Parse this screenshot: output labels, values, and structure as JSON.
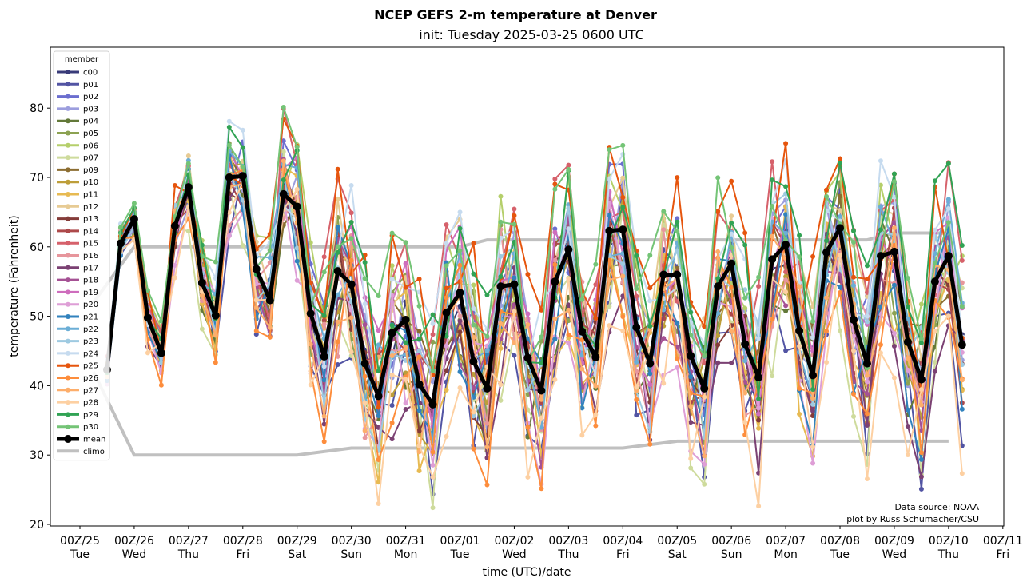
{
  "chart_data": {
    "type": "line",
    "title": "NCEP GEFS 2-m temperature at Denver",
    "subtitle": "init: Tuesday 2025-03-25 0600 UTC",
    "xlabel": "time (UTC)/date",
    "ylabel": "temperature (Fahrenheit)",
    "ylim": [
      20,
      89
    ],
    "yticks": [
      20,
      30,
      40,
      50,
      60,
      70,
      80
    ],
    "xlim_days": [
      -0.55,
      17.0
    ],
    "xticks": [
      {
        "line1": "00Z/25",
        "line2": "Tue"
      },
      {
        "line1": "00Z/26",
        "line2": "Wed"
      },
      {
        "line1": "00Z/27",
        "line2": "Thu"
      },
      {
        "line1": "00Z/28",
        "line2": "Fri"
      },
      {
        "line1": "00Z/29",
        "line2": "Sat"
      },
      {
        "line1": "00Z/30",
        "line2": "Sun"
      },
      {
        "line1": "00Z/31",
        "line2": "Mon"
      },
      {
        "line1": "00Z/01",
        "line2": "Tue"
      },
      {
        "line1": "00Z/02",
        "line2": "Wed"
      },
      {
        "line1": "00Z/03",
        "line2": "Thu"
      },
      {
        "line1": "00Z/04",
        "line2": "Fri"
      },
      {
        "line1": "00Z/05",
        "line2": "Sat"
      },
      {
        "line1": "00Z/06",
        "line2": "Sun"
      },
      {
        "line1": "00Z/07",
        "line2": "Mon"
      },
      {
        "line1": "00Z/08",
        "line2": "Tue"
      },
      {
        "line1": "00Z/09",
        "line2": "Wed"
      },
      {
        "line1": "00Z/10",
        "line2": "Thu"
      },
      {
        "line1": "00Z/11",
        "line2": "Fri"
      }
    ],
    "time_start_days": 0.5,
    "time_step_days": 0.25,
    "legend_title": "member",
    "legend_position": "top-left",
    "members": [
      {
        "name": "c00",
        "color": "#393b79",
        "offset": -0.5,
        "spread": 0.6
      },
      {
        "name": "p01",
        "color": "#5254a3",
        "offset": -3.0,
        "spread": 1.6
      },
      {
        "name": "p02",
        "color": "#6b6ecf",
        "offset": 1.0,
        "spread": 1.2
      },
      {
        "name": "p03",
        "color": "#9c9ede",
        "offset": 0.5,
        "spread": 1.1
      },
      {
        "name": "p04",
        "color": "#637939",
        "offset": -2.0,
        "spread": 1.3
      },
      {
        "name": "p05",
        "color": "#8ca252",
        "offset": 0.0,
        "spread": 1.4
      },
      {
        "name": "p06",
        "color": "#b5cf6b",
        "offset": 2.5,
        "spread": 1.3
      },
      {
        "name": "p07",
        "color": "#cedb9c",
        "offset": -2.5,
        "spread": 1.8
      },
      {
        "name": "p09",
        "color": "#8c6d31",
        "offset": 0.5,
        "spread": 1.0
      },
      {
        "name": "p10",
        "color": "#bd9e39",
        "offset": -1.0,
        "spread": 1.1
      },
      {
        "name": "p11",
        "color": "#e7ba52",
        "offset": -1.5,
        "spread": 1.5
      },
      {
        "name": "p12",
        "color": "#e7cb94",
        "offset": 2.0,
        "spread": 1.2
      },
      {
        "name": "p13",
        "color": "#843c39",
        "offset": -1.0,
        "spread": 1.0
      },
      {
        "name": "p14",
        "color": "#ad494a",
        "offset": -0.5,
        "spread": 1.1
      },
      {
        "name": "p15",
        "color": "#d6616b",
        "offset": 3.5,
        "spread": 1.5
      },
      {
        "name": "p16",
        "color": "#e7969c",
        "offset": -1.0,
        "spread": 1.6
      },
      {
        "name": "p17",
        "color": "#7b4173",
        "offset": -4.0,
        "spread": 1.3
      },
      {
        "name": "p18",
        "color": "#a55194",
        "offset": -1.5,
        "spread": 1.2
      },
      {
        "name": "p19",
        "color": "#ce6dbd",
        "offset": 1.5,
        "spread": 1.1
      },
      {
        "name": "p20",
        "color": "#de9ed6",
        "offset": -2.5,
        "spread": 1.5
      },
      {
        "name": "p21",
        "color": "#3182bd",
        "offset": -1.5,
        "spread": 1.4
      },
      {
        "name": "p22",
        "color": "#6baed6",
        "offset": 1.0,
        "spread": 1.0
      },
      {
        "name": "p23",
        "color": "#9ecae1",
        "offset": -0.5,
        "spread": 1.3
      },
      {
        "name": "p24",
        "color": "#c6dbef",
        "offset": 3.0,
        "spread": 1.4
      },
      {
        "name": "p25",
        "color": "#e6550d",
        "offset": 4.5,
        "spread": 1.4
      },
      {
        "name": "p26",
        "color": "#fd8d3c",
        "offset": -3.0,
        "spread": 1.3
      },
      {
        "name": "p27",
        "color": "#fdae6b",
        "offset": -1.0,
        "spread": 1.2
      },
      {
        "name": "p28",
        "color": "#fdd0a2",
        "offset": -4.5,
        "spread": 1.7
      },
      {
        "name": "p29",
        "color": "#31a354",
        "offset": 3.5,
        "spread": 1.3
      },
      {
        "name": "p30",
        "color": "#74c476",
        "offset": 5.0,
        "spread": 1.2
      }
    ],
    "mean": {
      "name": "mean",
      "color": "#000000",
      "values": [
        42.3,
        60.5,
        64.0,
        49.8,
        44.7,
        63.0,
        68.6,
        54.8,
        50.1,
        70.0,
        70.2,
        56.8,
        52.3,
        67.6,
        65.8,
        50.4,
        44.2,
        56.5,
        54.6,
        43.2,
        38.5,
        47.6,
        49.5,
        40.2,
        37.3,
        50.5,
        53.4,
        43.5,
        39.6,
        54.3,
        54.6,
        44.0,
        39.3,
        55.0,
        59.6,
        47.8,
        44.1,
        62.3,
        62.5,
        48.4,
        43.2,
        56.0,
        56.0,
        44.3,
        39.6,
        54.3,
        57.6,
        46.0,
        41.2,
        58.2,
        60.3,
        47.9,
        41.5,
        59.2,
        62.7,
        49.5,
        43.2,
        58.7,
        59.3,
        46.3,
        40.9,
        55.0,
        58.7,
        45.9
      ]
    },
    "climo": {
      "name": "climo",
      "color": "#c0c0c0",
      "upper": {
        "x_days": [
          0.25,
          1.0,
          7.0,
          7.5,
          14.5,
          15.0,
          16.0
        ],
        "values": [
          52.0,
          60.0,
          60.0,
          61.0,
          61.0,
          62.0,
          62.0
        ]
      },
      "lower": {
        "x_days": [
          0.25,
          1.0,
          4.0,
          5.0,
          10.0,
          11.0,
          16.0
        ],
        "values": [
          42.0,
          30.0,
          30.0,
          31.0,
          31.0,
          32.0,
          32.0
        ]
      }
    },
    "annotations": [
      "Data source: NOAA",
      "plot by Russ Schumacher/CSU"
    ],
    "grid": false
  }
}
